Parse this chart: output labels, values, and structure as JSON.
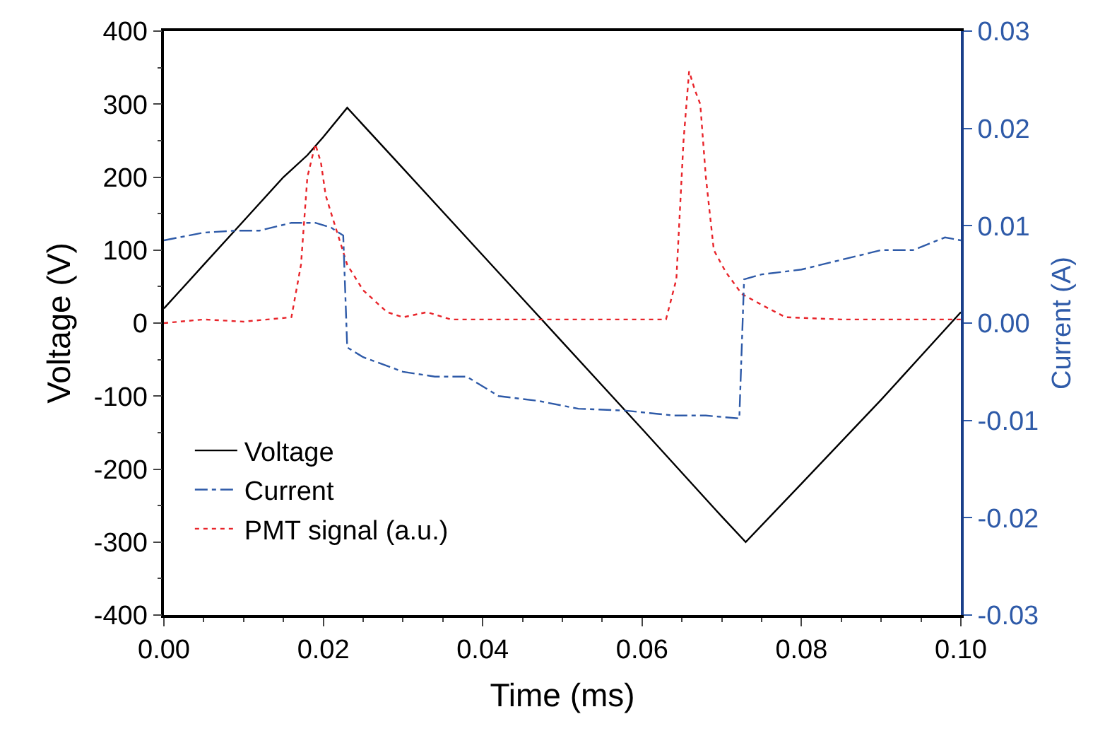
{
  "chart_data": {
    "type": "line",
    "xlabel": "Time (ms)",
    "ylabel": "Voltage (V)",
    "y2label": "Current (A)",
    "xlim": [
      0,
      0.1
    ],
    "xticks": [
      {
        "value": 0,
        "label": "0.00"
      },
      {
        "value": 0.02,
        "label": "0.02"
      },
      {
        "value": 0.04,
        "label": "0.04"
      },
      {
        "value": 0.06,
        "label": "0.06"
      },
      {
        "value": 0.08,
        "label": "0.08"
      },
      {
        "value": 0.1,
        "label": "0.10"
      }
    ],
    "ylim": [
      -400,
      400
    ],
    "yticks": [
      -400,
      -300,
      -200,
      -100,
      0,
      100,
      200,
      300,
      400
    ],
    "y2lim": [
      -0.03,
      0.03
    ],
    "y2ticks": [
      {
        "value": -0.03,
        "label": "-0.03"
      },
      {
        "value": -0.02,
        "label": "-0.02"
      },
      {
        "value": -0.01,
        "label": "-0.01"
      },
      {
        "value": 0,
        "label": "0.00"
      },
      {
        "value": 0.01,
        "label": "0.01"
      },
      {
        "value": 0.02,
        "label": "0.02"
      },
      {
        "value": 0.03,
        "label": "0.03"
      }
    ],
    "grid": false,
    "legend": "bottom left",
    "marker": "none",
    "series": [
      {
        "name": "Voltage",
        "color": "#000000",
        "line_style": "solid",
        "x": [
          0,
          0.005,
          0.01,
          0.015,
          0.018,
          0.02,
          0.023,
          0.03,
          0.04,
          0.05,
          0.06,
          0.07,
          0.073,
          0.08,
          0.09,
          0.1
        ],
        "values": [
          20,
          80,
          140,
          200,
          230,
          255,
          295,
          212,
          93,
          -26,
          -145,
          -265,
          -300,
          -220,
          -105,
          15
        ]
      },
      {
        "name": "Current",
        "color": "#2e5aa8",
        "line_style": "dashdot",
        "axis": "y2",
        "x": [
          0,
          0.005,
          0.009,
          0.012,
          0.016,
          0.019,
          0.021,
          0.0225,
          0.023,
          0.025,
          0.03,
          0.034,
          0.038,
          0.042,
          0.047,
          0.052,
          0.058,
          0.064,
          0.068,
          0.0722,
          0.0728,
          0.075,
          0.08,
          0.085,
          0.09,
          0.094,
          0.098,
          0.1
        ],
        "values": [
          0.0085,
          0.0093,
          0.0095,
          0.0095,
          0.0103,
          0.0103,
          0.0098,
          0.009,
          -0.0025,
          -0.0035,
          -0.005,
          -0.0055,
          -0.0055,
          -0.0075,
          -0.008,
          -0.0088,
          -0.009,
          -0.0095,
          -0.0095,
          -0.0098,
          0.0045,
          0.005,
          0.0055,
          0.0065,
          0.0075,
          0.0075,
          0.0088,
          0.0085
        ]
      },
      {
        "name": "PMT signal (a.u.)",
        "color": "#e8242a",
        "line_style": "dotted",
        "x": [
          0,
          0.005,
          0.01,
          0.016,
          0.0172,
          0.018,
          0.019,
          0.0197,
          0.0203,
          0.021,
          0.023,
          0.025,
          0.028,
          0.03,
          0.033,
          0.036,
          0.04,
          0.05,
          0.063,
          0.0643,
          0.0652,
          0.0659,
          0.0666,
          0.0673,
          0.068,
          0.069,
          0.0705,
          0.0725,
          0.075,
          0.078,
          0.085,
          0.09,
          0.1
        ],
        "values": [
          0,
          5,
          2,
          8,
          80,
          200,
          245,
          220,
          175,
          150,
          80,
          45,
          15,
          8,
          15,
          5,
          5,
          5,
          5,
          60,
          250,
          345,
          320,
          300,
          200,
          100,
          70,
          40,
          25,
          8,
          5,
          5,
          5
        ]
      }
    ]
  }
}
